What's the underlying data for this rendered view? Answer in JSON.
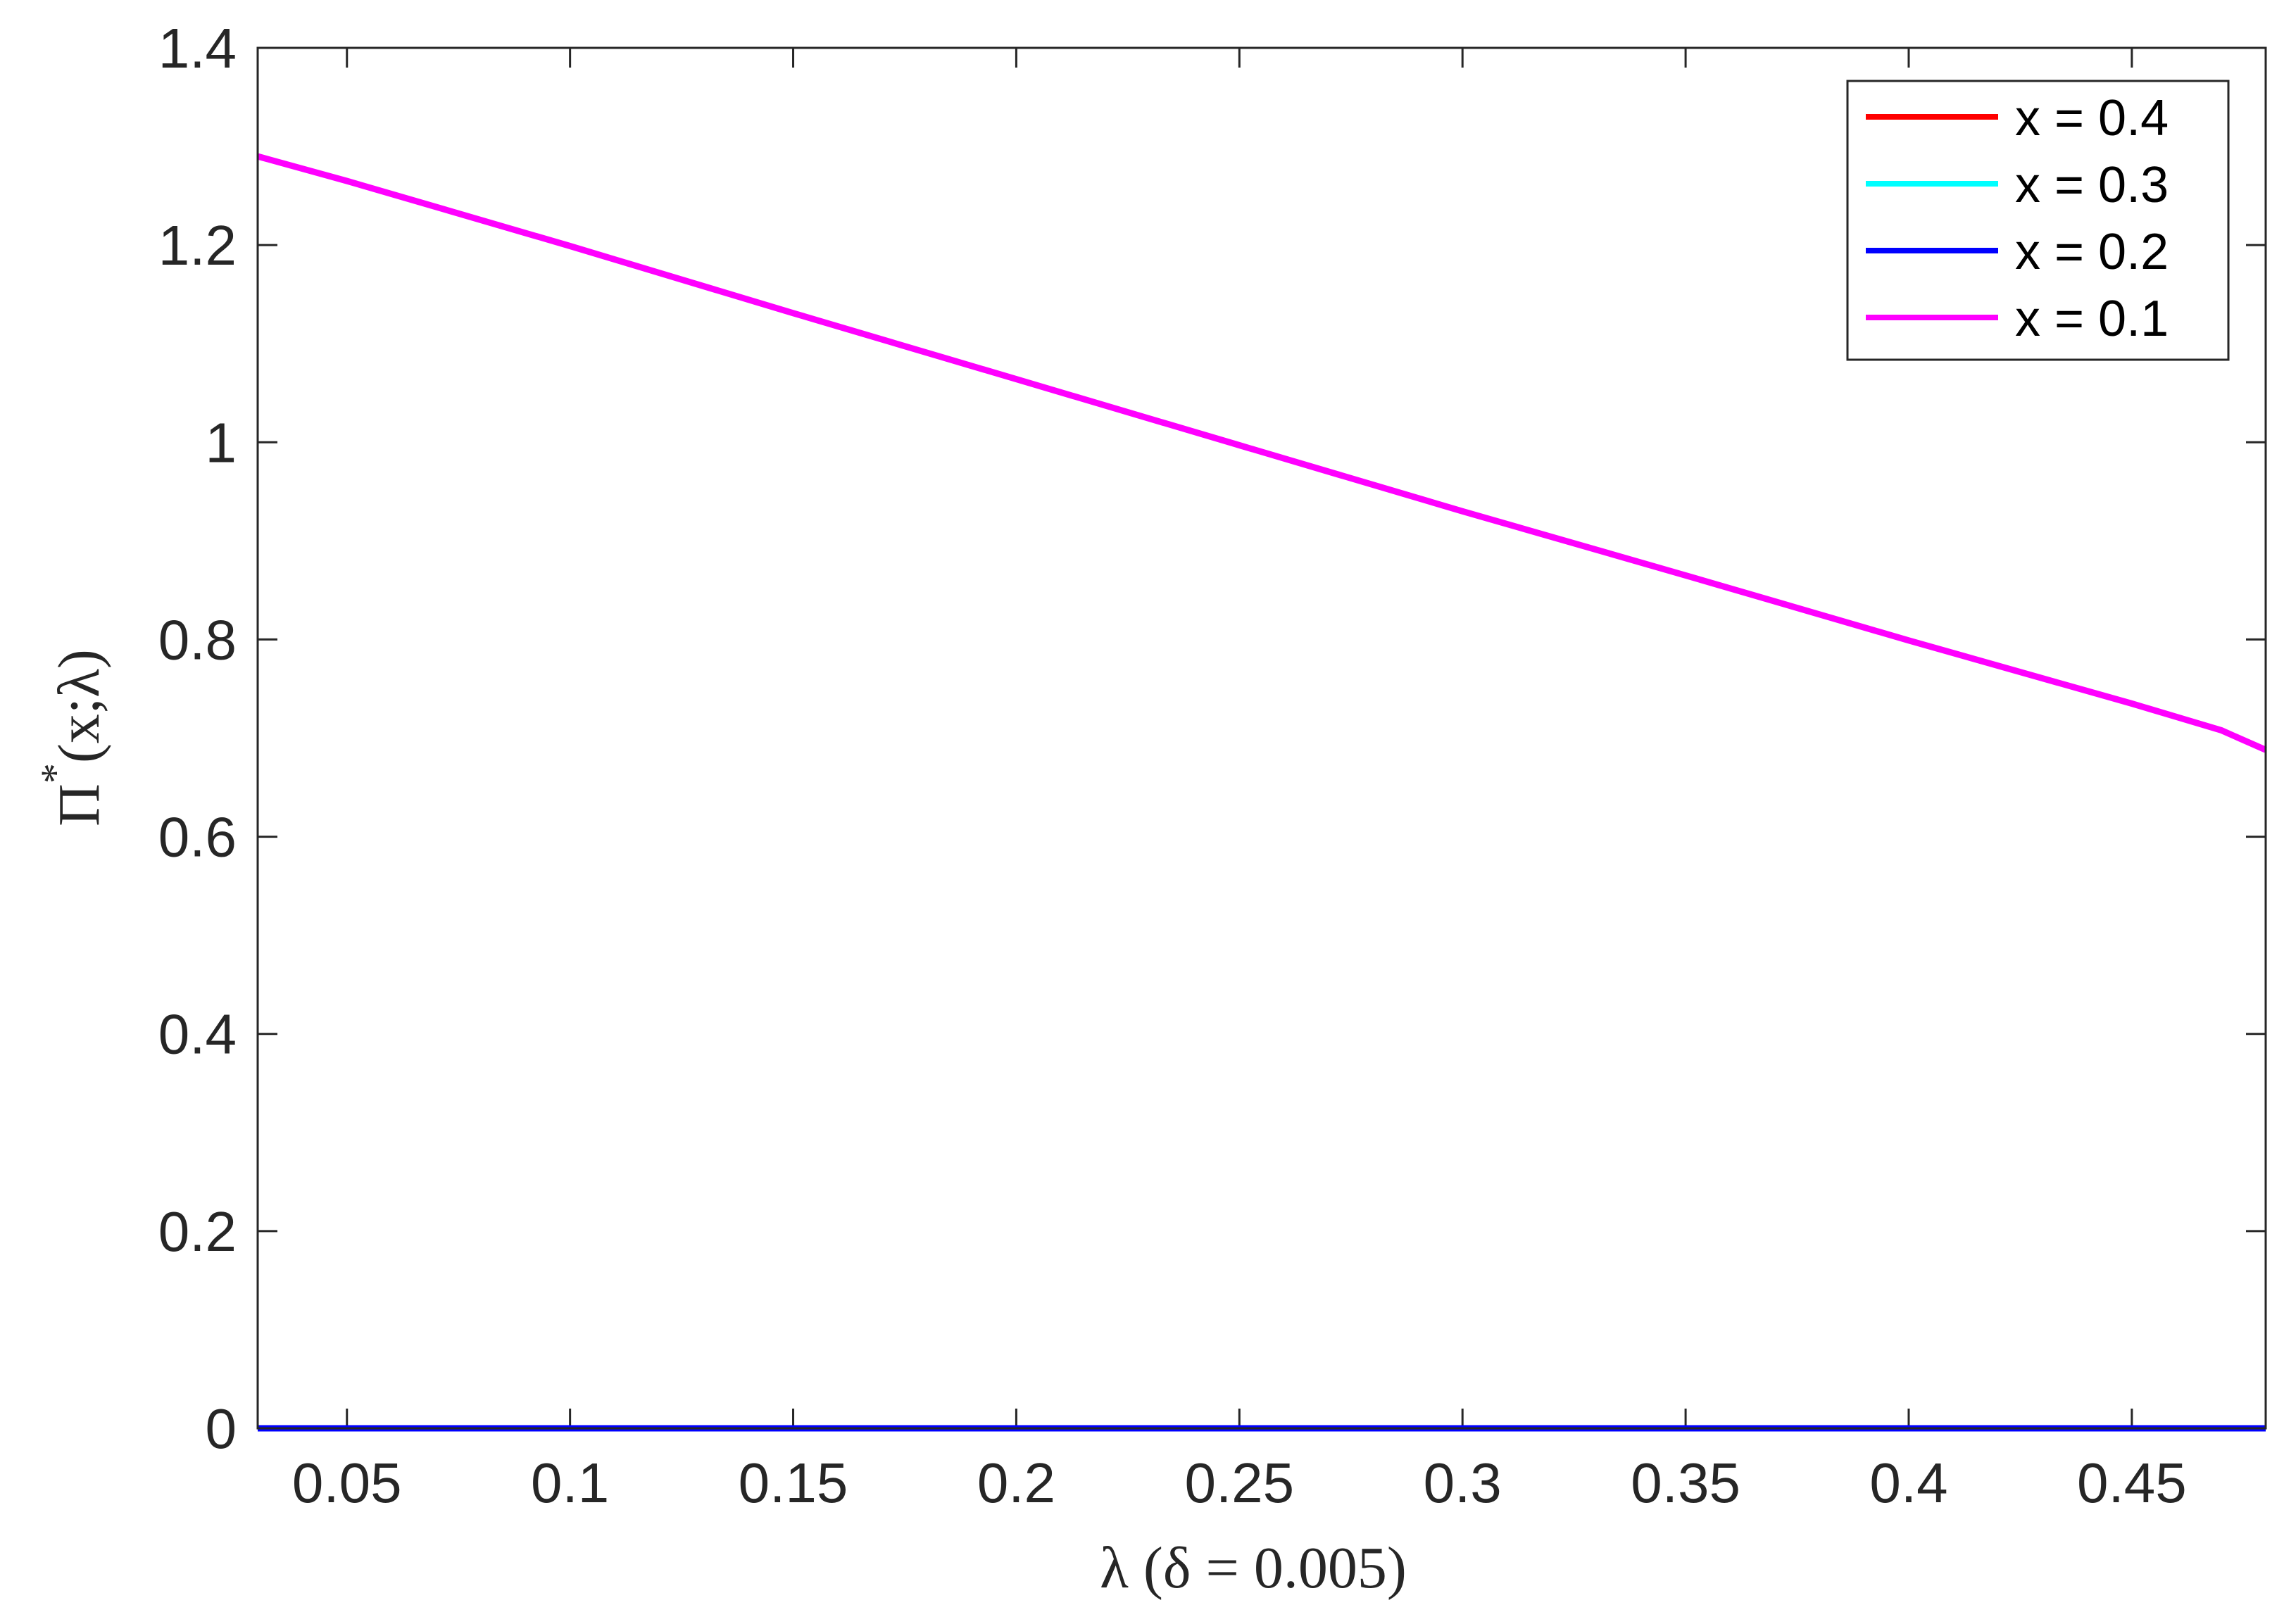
{
  "chart_data": {
    "type": "line",
    "xlabel": "λ (δ = 0.005)",
    "ylabel_main": "Π",
    "ylabel_sup": "*",
    "ylabel_rest": "(x;λ)",
    "xlim": [
      0.03,
      0.48
    ],
    "ylim": [
      0,
      1.4
    ],
    "xticks": [
      0.05,
      0.1,
      0.15,
      0.2,
      0.25,
      0.3,
      0.35,
      0.4,
      0.45
    ],
    "xtick_labels": [
      "0.05",
      "0.1",
      "0.15",
      "0.2",
      "0.25",
      "0.3",
      "0.35",
      "0.4",
      "0.45"
    ],
    "yticks": [
      0,
      0.2,
      0.4,
      0.6,
      0.8,
      1.0,
      1.2,
      1.4
    ],
    "ytick_labels": [
      "0",
      "0.2",
      "0.4",
      "0.6",
      "0.8",
      "1",
      "1.2",
      "1.4"
    ],
    "grid": false,
    "legend_position": "top-right",
    "series": [
      {
        "name": "x = 0.4",
        "color": "#ff0000",
        "x": [
          0.03,
          0.48
        ],
        "y": [
          0,
          0
        ]
      },
      {
        "name": "x = 0.3",
        "color": "#00ffff",
        "x": [
          0.03,
          0.48
        ],
        "y": [
          0,
          0
        ]
      },
      {
        "name": "x = 0.2",
        "color": "#0000ff",
        "x": [
          0.03,
          0.48
        ],
        "y": [
          0,
          0
        ]
      },
      {
        "name": "x = 0.1",
        "color": "#ff00ff",
        "x": [
          0.03,
          0.05,
          0.1,
          0.15,
          0.2,
          0.25,
          0.3,
          0.35,
          0.4,
          0.45,
          0.47,
          0.48
        ],
        "y": [
          1.29,
          1.265,
          1.199,
          1.131,
          1.064,
          0.997,
          0.93,
          0.865,
          0.799,
          0.735,
          0.708,
          0.688
        ]
      }
    ],
    "draw_order": [
      0,
      1,
      3,
      2
    ]
  }
}
